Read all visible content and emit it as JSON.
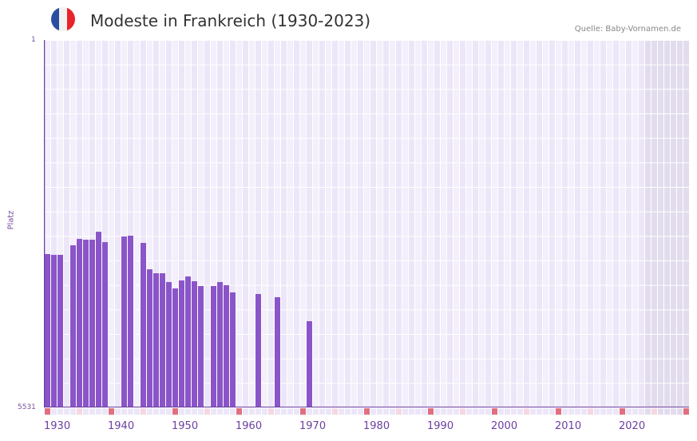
{
  "header": {
    "title": "Modeste in Frankreich (1930-2023)",
    "source": "Quelle: Baby-Vornamen.de",
    "flag_colors": [
      "#2b4fa0",
      "#f2f2f2",
      "#e8232b"
    ]
  },
  "axis": {
    "y_top_label": "1",
    "y_bottom_label": "5531",
    "y_title": "Platz",
    "x_ticks": [
      "1930",
      "1940",
      "1950",
      "1960",
      "1970",
      "1980",
      "1990",
      "2000",
      "2010",
      "2020"
    ]
  },
  "colors": {
    "bar": "#8a55c8",
    "axis": "#6b3fa0",
    "decade_marker": "#e07080",
    "grid_light": "#f3effb",
    "grid_dark": "#ece6f8",
    "future_shade": "#e2dcee"
  },
  "chart_data": {
    "type": "bar",
    "title": "Modeste in Frankreich (1930-2023)",
    "xlabel": "",
    "ylabel": "Platz",
    "ylim": [
      5531,
      1
    ],
    "y_inverted": true,
    "categories": [
      1930,
      1931,
      1932,
      1934,
      1935,
      1936,
      1937,
      1938,
      1939,
      1942,
      1943,
      1945,
      1946,
      1947,
      1948,
      1949,
      1950,
      1951,
      1952,
      1953,
      1954,
      1956,
      1957,
      1958,
      1959,
      1963,
      1966,
      1971
    ],
    "values": [
      3223,
      3235,
      3235,
      3091,
      2995,
      3007,
      3007,
      2887,
      3043,
      2959,
      2947,
      3055,
      3452,
      3512,
      3512,
      3644,
      3740,
      3620,
      3560,
      3632,
      3704,
      3704,
      3644,
      3692,
      3800,
      3824,
      3872,
      4233
    ]
  }
}
